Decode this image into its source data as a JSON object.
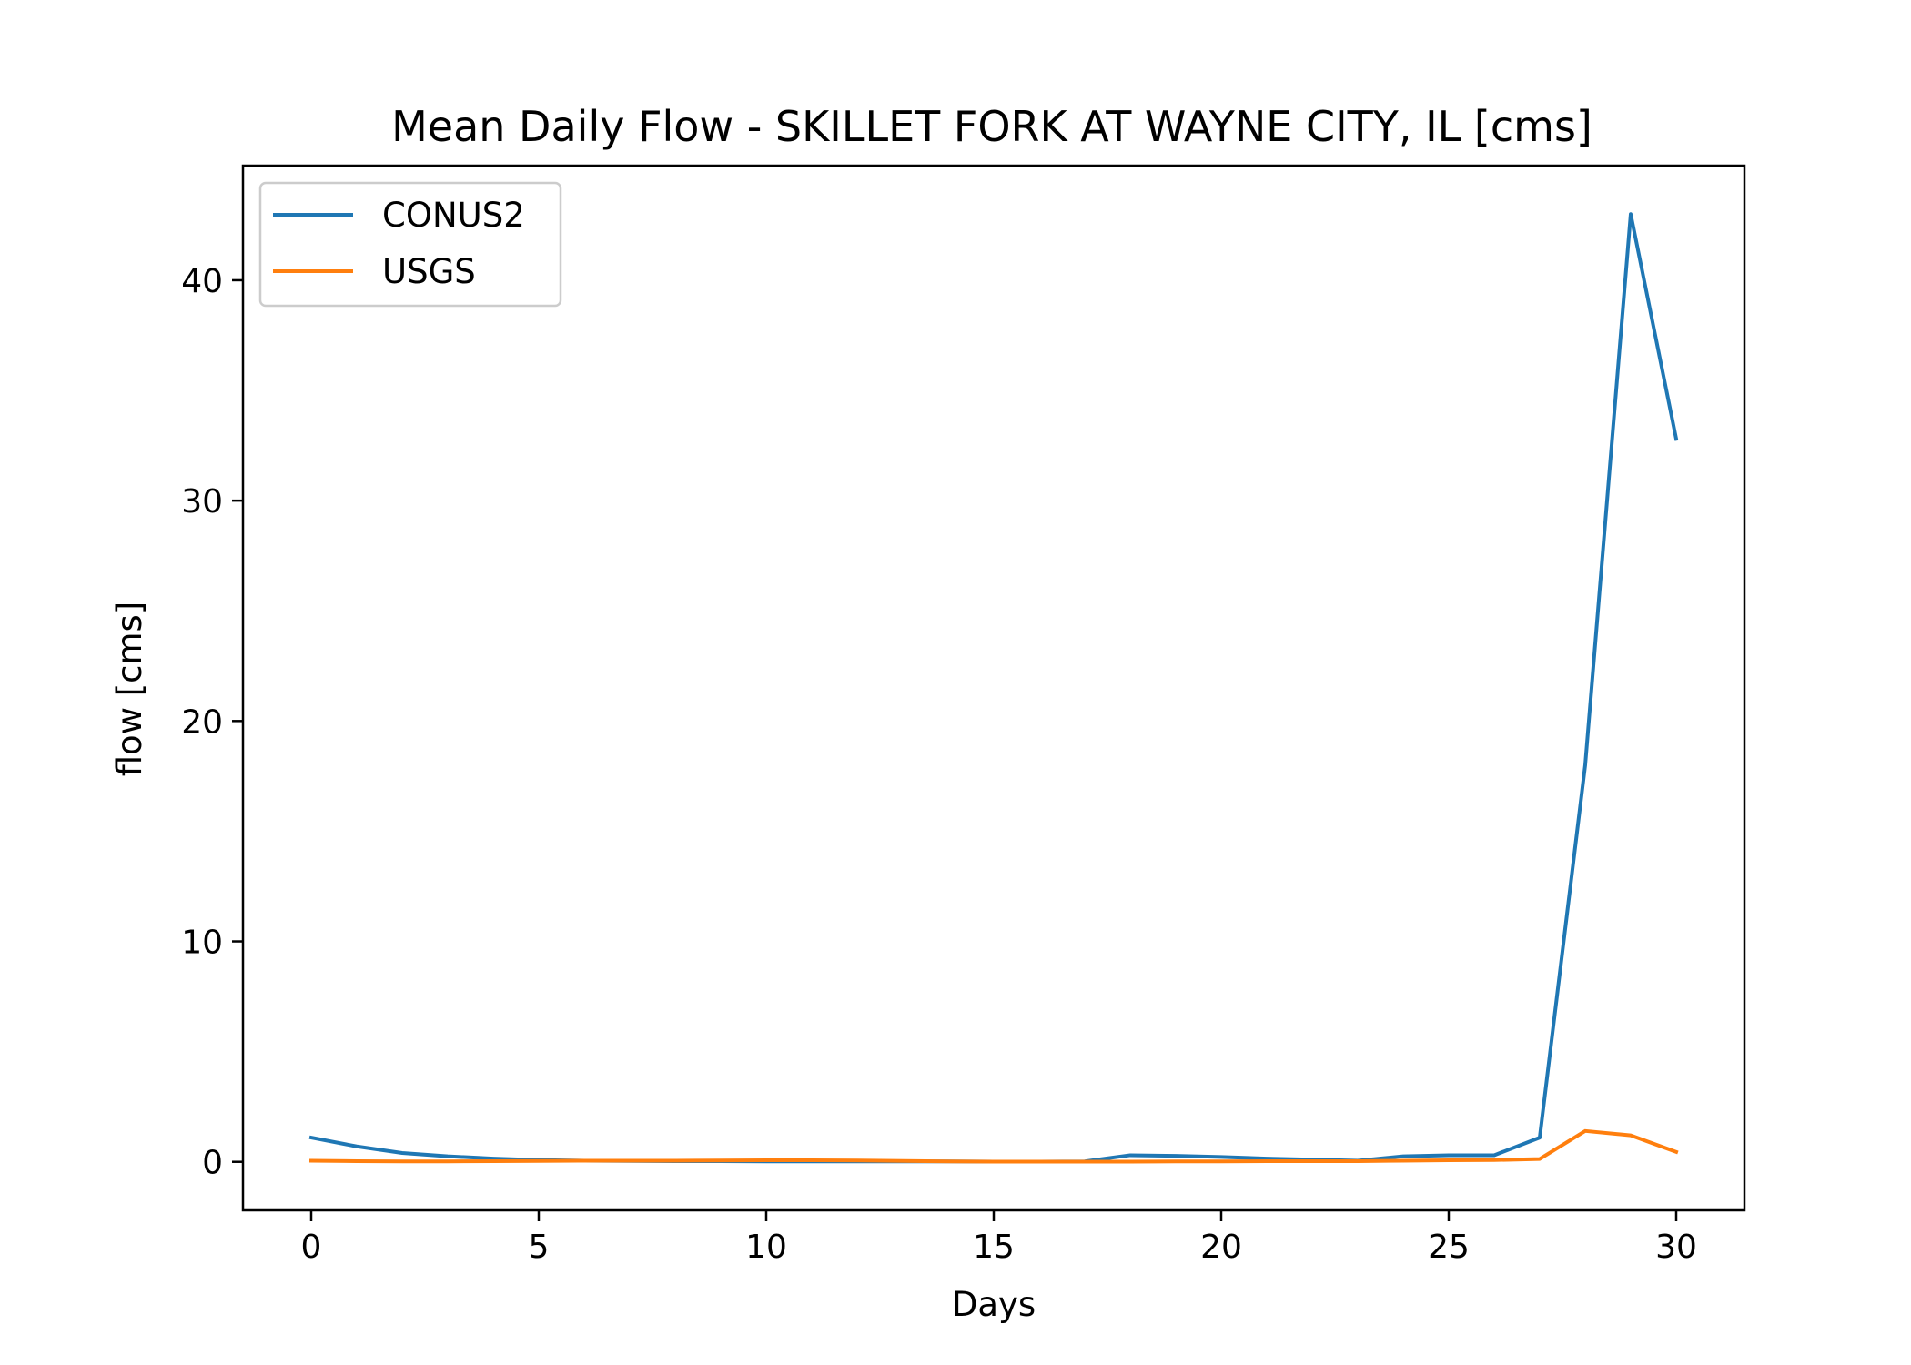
{
  "chart_data": {
    "type": "line",
    "title": "Mean Daily Flow - SKILLET FORK AT WAYNE CITY, IL [cms]",
    "xlabel": "Days",
    "ylabel": "flow [cms]",
    "xlim": [
      -1.5,
      31.5
    ],
    "ylim": [
      -2.2,
      45.2
    ],
    "xticks": [
      0,
      5,
      10,
      15,
      20,
      25,
      30
    ],
    "yticks": [
      0,
      10,
      20,
      30,
      40
    ],
    "grid": false,
    "legend_position": "top-left",
    "x": [
      0,
      1,
      2,
      3,
      4,
      5,
      6,
      7,
      8,
      9,
      10,
      11,
      12,
      13,
      14,
      15,
      16,
      17,
      18,
      19,
      20,
      21,
      22,
      23,
      24,
      25,
      26,
      27,
      28,
      29,
      30
    ],
    "series": [
      {
        "name": "CONUS2",
        "color": "#1f77b4",
        "values": [
          1.1,
          0.7,
          0.4,
          0.25,
          0.15,
          0.08,
          0.05,
          0.04,
          0.03,
          0.03,
          0.02,
          0.02,
          0.02,
          0.02,
          0.02,
          0.01,
          0.01,
          0.02,
          0.3,
          0.27,
          0.22,
          0.15,
          0.1,
          0.05,
          0.25,
          0.3,
          0.3,
          1.1,
          18.0,
          43.0,
          32.8
        ]
      },
      {
        "name": "USGS",
        "color": "#ff7f0e",
        "values": [
          0.05,
          0.03,
          0.02,
          0.02,
          0.03,
          0.04,
          0.05,
          0.05,
          0.05,
          0.06,
          0.07,
          0.07,
          0.06,
          0.04,
          0.02,
          0.01,
          0.01,
          0.01,
          0.01,
          0.02,
          0.02,
          0.03,
          0.03,
          0.03,
          0.05,
          0.07,
          0.08,
          0.13,
          1.4,
          1.2,
          0.45
        ]
      }
    ]
  }
}
